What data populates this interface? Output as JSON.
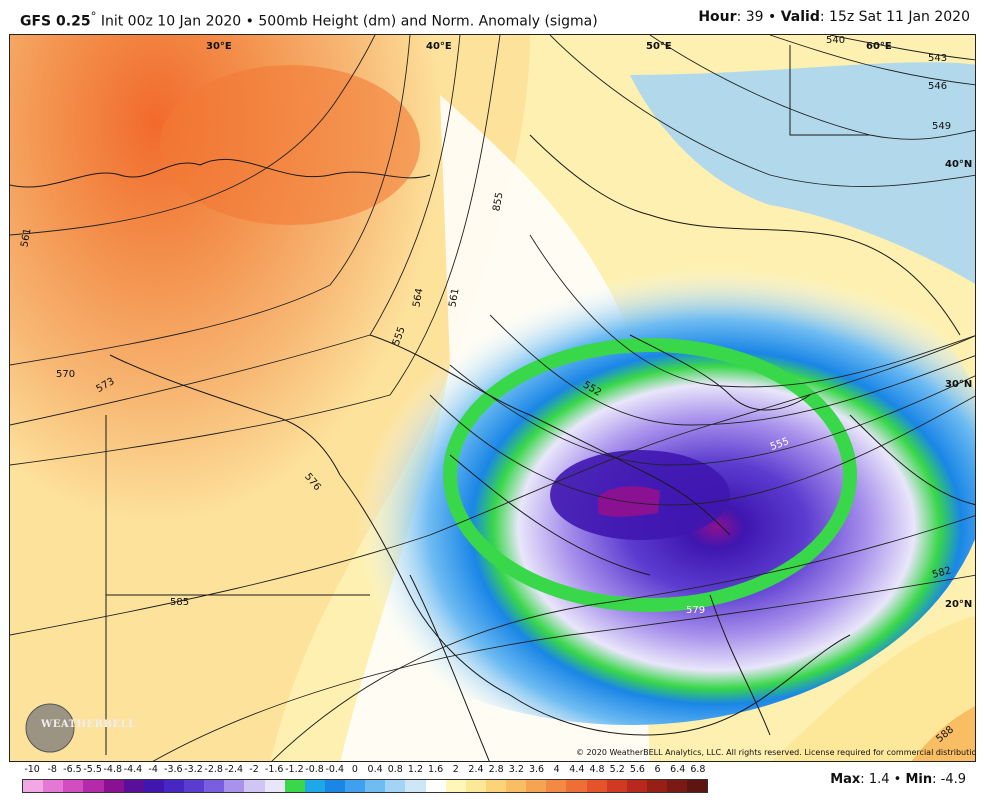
{
  "header": {
    "model": "GFS 0.25",
    "degree": "°",
    "init_text": "Init 00z 10 Jan 2020",
    "sep": "•",
    "product": "500mb Height (dm) and Norm. Anomaly (sigma)",
    "hour_label": "Hour",
    "hour_value": "39",
    "valid_label": "Valid",
    "valid_value": "15z Sat 11 Jan 2020"
  },
  "map": {
    "longitude_labels": [
      "30°E",
      "40°E",
      "50°E",
      "60°E"
    ],
    "latitude_labels": [
      "40°N",
      "30°N",
      "20°N"
    ],
    "contour_labels": [
      "561",
      "570",
      "573",
      "576",
      "585",
      "564",
      "561",
      "855",
      "555",
      "552",
      "555",
      "579",
      "582",
      "588",
      "540",
      "543",
      "546",
      "549"
    ],
    "copyright": "© 2020 WeatherBELL Analytics, LLC. All rights reserved. License required for commercial distribution.",
    "logo_text": "WEATHERBELL",
    "logo_sub": "Analytics LLC"
  },
  "colorbar": {
    "tick_labels": [
      "-10",
      "-8",
      "-6.5",
      "-5.5",
      "-4.8",
      "-4.4",
      "-4",
      "-3.6",
      "-3.2",
      "-2.8",
      "-2.4",
      "-2",
      "-1.6",
      "-1.2",
      "-0.8",
      "-0.4",
      "0",
      "0.4",
      "0.8",
      "1.2",
      "1.6",
      "2",
      "2.4",
      "2.8",
      "3.2",
      "3.6",
      "4",
      "4.4",
      "4.8",
      "5.2",
      "5.6",
      "6",
      "6.4",
      "6.8"
    ],
    "colors": [
      "#f3a8e6",
      "#e578d4",
      "#d24ec0",
      "#b52aa8",
      "#8a1292",
      "#5a0e9a",
      "#3f16b0",
      "#4826c4",
      "#5c3cd0",
      "#7b5ee0",
      "#a892ec",
      "#cfc6f4",
      "#e9e6fa",
      "#39d74a",
      "#1fa8e8",
      "#1a86e6",
      "#3ea0ee",
      "#6fbcf2",
      "#a3d4f6",
      "#cde6f8",
      "#ffffff",
      "#fff6b8",
      "#fde89a",
      "#fbd47a",
      "#f9bd64",
      "#f6a352",
      "#f38a44",
      "#ee6f36",
      "#e4532a",
      "#d03a22",
      "#b8281c",
      "#962016",
      "#7a1a12",
      "#5e1410"
    ],
    "max_label": "Max",
    "max_value": "1.4",
    "min_label": "Min",
    "min_value": "-4.9"
  }
}
